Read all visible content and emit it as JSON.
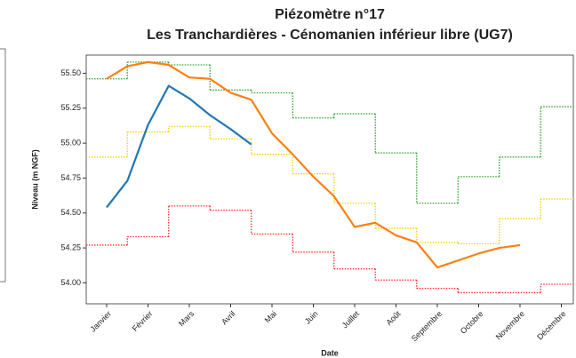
{
  "chart_data": {
    "type": "line",
    "title": "Piézomètre n°17",
    "subtitle": "Les Tranchardières - Cénomanien inférieur libre (UG7)",
    "x_label": "Date",
    "y_label": "Niveau (m NGF)",
    "categories": [
      "Janvier",
      null,
      "Février",
      null,
      "Mars",
      null,
      "Avril",
      null,
      "Mai",
      null,
      "Juin",
      null,
      "Juillet",
      null,
      "Août",
      null,
      "Septembre",
      null,
      "Octobre",
      null,
      "Novembre",
      null,
      "Décembre"
    ],
    "ylim": [
      53.85,
      55.63
    ],
    "yticks": [
      {
        "value": 54.0,
        "label": "54.00"
      },
      54.25,
      {
        "value": 54.5,
        "label": "54.50"
      },
      54.75,
      {
        "value": 55.0,
        "label": "55.00"
      },
      55.25,
      {
        "value": 55.5,
        "label": "55.50"
      }
    ],
    "series": [
      {
        "color": "#2ca02c",
        "style": "step",
        "values": [
          55.46,
          null,
          55.58,
          null,
          55.56,
          null,
          55.38,
          null,
          55.36,
          null,
          55.18,
          null,
          55.21,
          null,
          54.93,
          null,
          54.57,
          null,
          54.76,
          null,
          54.9,
          null,
          55.26
        ]
      },
      {
        "color": "#f5d000",
        "style": "step",
        "values": [
          54.9,
          null,
          55.08,
          null,
          55.12,
          null,
          55.03,
          null,
          54.92,
          null,
          54.78,
          null,
          54.57,
          null,
          54.39,
          null,
          54.29,
          null,
          54.28,
          null,
          54.46,
          null,
          54.6
        ]
      },
      {
        "color": "#ff2a2a",
        "style": "step",
        "values": [
          54.27,
          null,
          54.33,
          null,
          54.55,
          null,
          54.52,
          null,
          54.35,
          null,
          54.22,
          null,
          54.1,
          null,
          54.02,
          null,
          53.96,
          null,
          53.93,
          null,
          53.93,
          null,
          53.99
        ]
      },
      {
        "color": "#ff7f0e",
        "style": "line",
        "values": [
          55.46,
          55.55,
          55.58,
          55.56,
          55.47,
          55.46,
          55.36,
          55.31,
          55.07,
          54.92,
          54.76,
          54.62,
          54.4,
          54.43,
          54.34,
          54.29,
          54.11,
          54.16,
          54.21,
          54.25,
          54.27,
          null,
          null
        ]
      },
      {
        "color": "#1f77b4",
        "style": "line",
        "values": [
          54.54,
          54.73,
          55.13,
          55.41,
          55.32,
          55.2,
          55.1,
          54.99,
          null,
          null,
          null,
          null,
          null,
          null,
          null,
          null,
          null,
          null,
          null,
          null,
          null,
          null,
          null
        ]
      }
    ]
  }
}
